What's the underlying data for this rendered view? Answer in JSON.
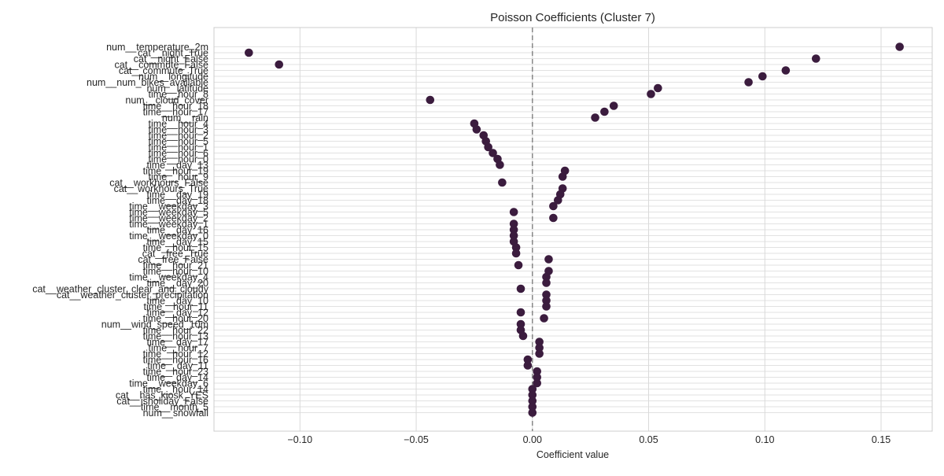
{
  "chart_data": {
    "type": "scatter",
    "title": "Poisson Coefficients (Cluster 7)",
    "xlabel": "Coefficient value",
    "ylabel": "",
    "xlim": [
      -0.137,
      0.172
    ],
    "xticks": [
      -0.1,
      -0.05,
      0,
      0.05,
      0.1,
      0.15
    ],
    "xtick_labels": [
      "−0.10",
      "−0.05",
      "0.00",
      "0.05",
      "0.10",
      "0.15"
    ],
    "grid": true,
    "zero_line": {
      "x": 0,
      "style": "dashed",
      "color": "#808080"
    },
    "marker_color": "#3b1c3e",
    "categories": [
      "num__temperature_2m",
      "cat__night_True",
      "cat__night_False",
      "cat__commute_False",
      "cat__commute_True",
      "num__longitude",
      "num__num_bikes_available",
      "num__latitude",
      "time__hour_8",
      "num__cloud_cover",
      "time__hour_18",
      "time__hour_17",
      "num__rain",
      "time__hour_4",
      "time__hour_3",
      "time__hour_2",
      "time__hour_5",
      "time__hour_1",
      "time__hour_6",
      "time__hour_0",
      "time__day_13",
      "time__hour_19",
      "time__hour_9",
      "cat__workhours_False",
      "cat__workhours_True",
      "time__day_19",
      "time__day_18",
      "time__weekday_3",
      "time__weekday_5",
      "time__weekday_2",
      "time__weekday_1",
      "time__day_16",
      "time__weekday_0",
      "time__day_15",
      "time__hour_15",
      "cat__free_True",
      "cat__free_False",
      "time__hour_21",
      "time__hour_10",
      "time__weekday_4",
      "time__day_20",
      "cat__weather_cluster_clear_and_cloudy",
      "cat__weather_cluster_precipitation",
      "time__day_10",
      "time__hour_11",
      "time__day_12",
      "time__hour_20",
      "num__wind_speed_10m",
      "time__hour_22",
      "time__hour_13",
      "time__day_17",
      "time__hour_7",
      "time__hour_12",
      "time__hour_16",
      "time__day_11",
      "time__hour_23",
      "time__day_14",
      "time__weekday_6",
      "time__hour_14",
      "cat__has_kiosk_YES",
      "cat__isholiday_False",
      "time__month_5",
      "num__snowfall"
    ],
    "values": [
      0.158,
      -0.122,
      0.122,
      -0.109,
      0.109,
      0.099,
      0.093,
      0.054,
      0.051,
      -0.044,
      0.035,
      0.031,
      0.027,
      -0.025,
      -0.024,
      -0.021,
      -0.02,
      -0.019,
      -0.017,
      -0.015,
      -0.014,
      0.014,
      0.013,
      -0.013,
      0.013,
      0.012,
      0.011,
      0.009,
      -0.008,
      0.009,
      -0.008,
      -0.008,
      -0.008,
      -0.008,
      -0.007,
      -0.007,
      0.007,
      -0.006,
      0.007,
      0.006,
      0.006,
      -0.005,
      0.006,
      0.006,
      0.006,
      -0.005,
      0.005,
      -0.005,
      -0.005,
      -0.004,
      0.003,
      0.003,
      0.003,
      -0.002,
      -0.002,
      0.002,
      0.002,
      0.002,
      0.0,
      0.0,
      0.0,
      0.0,
      0.0
    ]
  }
}
